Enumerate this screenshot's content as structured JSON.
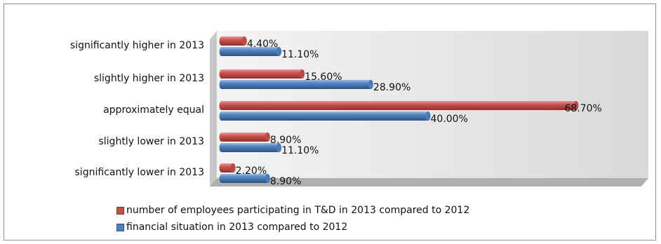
{
  "colors": {
    "series_0": "#c0504d",
    "series_1": "#4f81bd",
    "plot_wall": "#e6e6e6",
    "plot_floor": "#b3b3b3"
  },
  "chart_data": {
    "type": "bar",
    "orientation": "horizontal",
    "three_d": true,
    "categories": [
      "significantly higher in 2013",
      "slightly higher in 2013",
      "approximately equal",
      "slightly lower in 2013",
      "significantly lower in 2013"
    ],
    "series": [
      {
        "name": "number of employees participating in T&D in 2013 compared to 2012",
        "values": [
          4.4,
          15.6,
          68.7,
          8.9,
          2.2
        ],
        "labels": [
          "4.40%",
          "15.60%",
          "68.70%",
          "8.90%",
          "2.20%"
        ]
      },
      {
        "name": "financial situation in 2013 compared to 2012",
        "values": [
          11.1,
          28.9,
          40.0,
          11.1,
          8.9
        ],
        "labels": [
          "11.10%",
          "28.90%",
          "40.00%",
          "11.10%",
          "8.90%"
        ]
      }
    ],
    "xlim": [
      0,
      70
    ],
    "legend_position": "bottom",
    "grid": false
  }
}
